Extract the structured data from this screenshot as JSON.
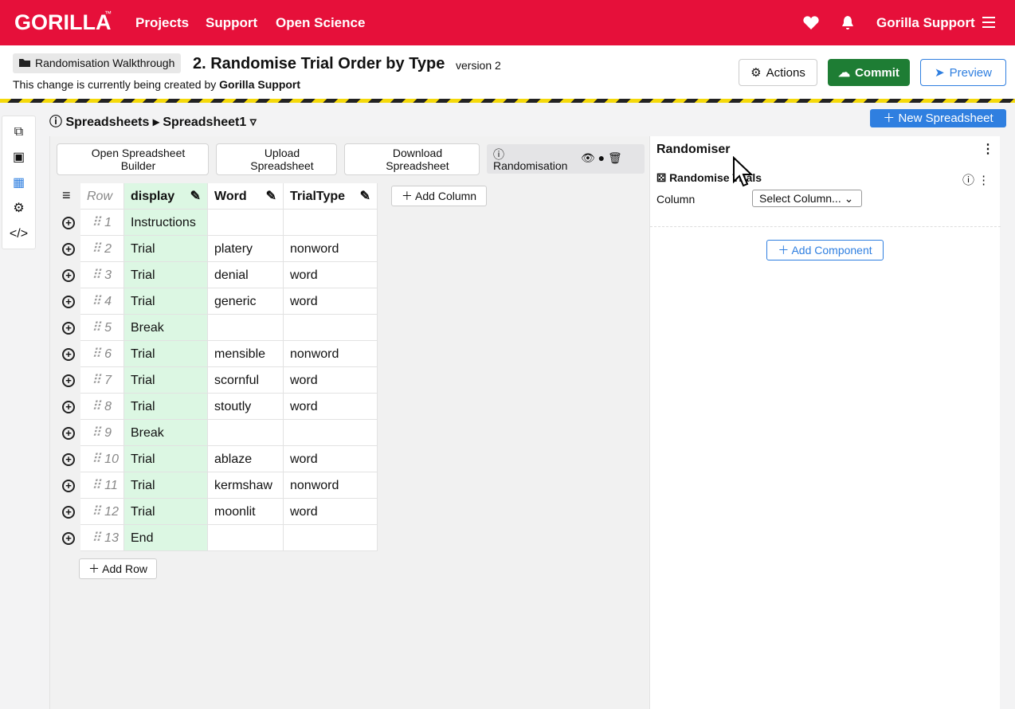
{
  "navbar": {
    "brand": "GORILLA",
    "brand_mark": "™",
    "links": [
      "Projects",
      "Support",
      "Open Science"
    ],
    "user": "Gorilla Support"
  },
  "header": {
    "breadcrumb": "Randomisation Walkthrough",
    "title": "2. Randomise Trial Order by Type",
    "version": "version 2",
    "status_prefix": "This change is currently being created by",
    "status_user": "Gorilla Support",
    "buttons": [
      "Actions",
      "Commit",
      "Preview"
    ]
  },
  "toolbar": {
    "section": "Spreadsheets",
    "current": "Spreadsheet1",
    "new_button": "New Spreadsheet"
  },
  "spreadsheet_actions": [
    "Open Spreadsheet Builder",
    "Upload Spreadsheet",
    "Download Spreadsheet"
  ],
  "randomisation_tab": "Randomisation",
  "table": {
    "columns": [
      "Row",
      "display",
      "Word",
      "TrialType"
    ],
    "add_column": "Add Column",
    "add_row": "Add Row",
    "rows": [
      [
        1,
        "Instructions",
        null,
        null
      ],
      [
        2,
        "Trial",
        "platery",
        "nonword"
      ],
      [
        3,
        "Trial",
        "denial",
        "word"
      ],
      [
        4,
        "Trial",
        "generic",
        "word"
      ],
      [
        5,
        "Break",
        null,
        null
      ],
      [
        6,
        "Trial",
        "mensible",
        "nonword"
      ],
      [
        7,
        "Trial",
        "scornful",
        "word"
      ],
      [
        8,
        "Trial",
        "stoutly",
        "word"
      ],
      [
        9,
        "Break",
        null,
        null
      ],
      [
        10,
        "Trial",
        "ablaze",
        "word"
      ],
      [
        11,
        "Trial",
        "kermshaw",
        "nonword"
      ],
      [
        12,
        "Trial",
        "moonlit",
        "word"
      ],
      [
        13,
        "End",
        null,
        null
      ]
    ]
  },
  "panel": {
    "title": "Randomiser",
    "component": "Randomise Trials",
    "field_label": "Column",
    "select_placeholder": "Select Column...",
    "add_component": "Add Component"
  }
}
